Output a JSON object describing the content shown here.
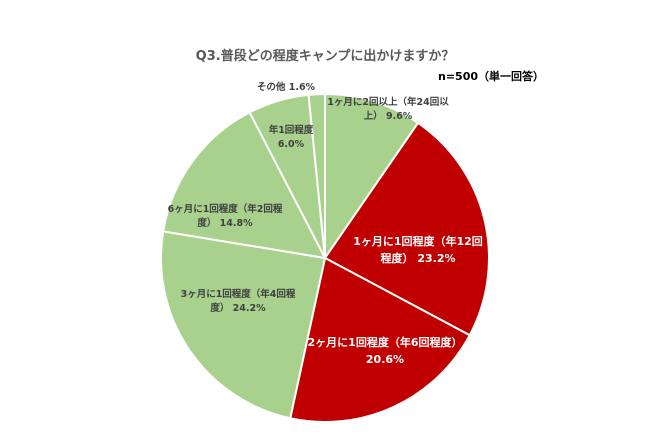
{
  "title": "Q3.普段どの程度キャンプに出かけますか？",
  "note": "n=500（単一回答）",
  "colors": {
    "highlight": "#c00000",
    "normal": "#a9d18e",
    "border": "#ffffff",
    "dark_text": "#404040",
    "light_text": "#ffffff"
  },
  "chart_data": {
    "type": "pie",
    "title": "Q3.普段どの程度キャンプに出かけますか？",
    "slices": [
      {
        "label_lines": [
          "1ヶ月に2回以上（年24回以",
          "上） 9.6%"
        ],
        "category": "1ヶ月に2回以上（年24回以上）",
        "value": 9.6,
        "color": "#a9d18e"
      },
      {
        "label_lines": [
          "1ヶ月に1回程度（年12回",
          "程度） 23.2%"
        ],
        "category": "1ヶ月に1回程度（年12回程度）",
        "value": 23.2,
        "color": "#c00000"
      },
      {
        "label_lines": [
          "2ヶ月に1回程度（年6回程度）",
          "20.6%"
        ],
        "category": "2ヶ月に1回程度（年6回程度）",
        "value": 20.6,
        "color": "#c00000"
      },
      {
        "label_lines": [
          "3ヶ月に1回程度（年4回程",
          "度） 24.2%"
        ],
        "category": "3ヶ月に1回程度（年4回程度）",
        "value": 24.2,
        "color": "#a9d18e"
      },
      {
        "label_lines": [
          "6ヶ月に1回程度（年2回程",
          "度） 14.8%"
        ],
        "category": "6ヶ月に1回程度（年2回程度）",
        "value": 14.8,
        "color": "#a9d18e"
      },
      {
        "label_lines": [
          "年1回程度",
          "6.0%"
        ],
        "category": "年1回程度",
        "value": 6.0,
        "color": "#a9d18e"
      },
      {
        "label_lines": [
          "その他 1.6%"
        ],
        "category": "その他",
        "value": 1.6,
        "color": "#a9d18e"
      }
    ]
  }
}
